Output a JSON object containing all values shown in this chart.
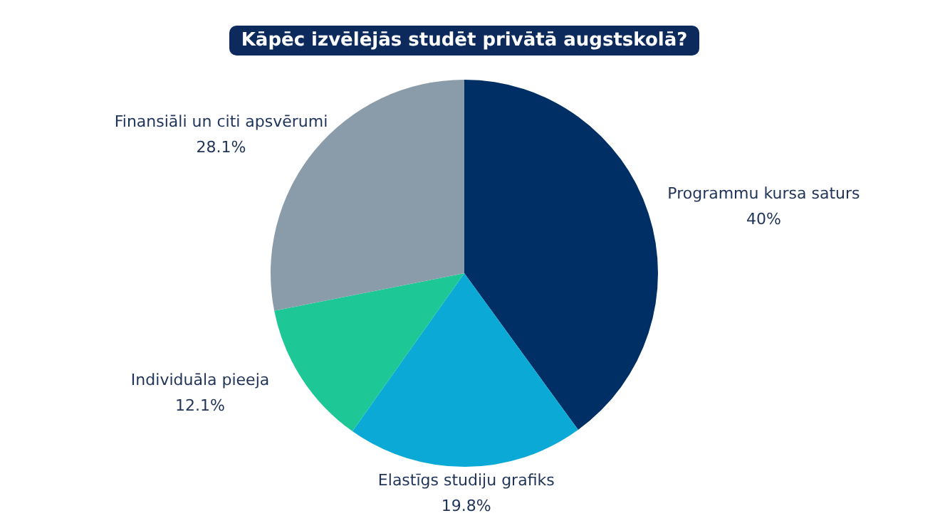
{
  "chart_data": {
    "type": "pie",
    "title": "Kāpēc izvēlējās studēt privātā augstskolā?",
    "categories": [
      "Programmu kursa saturs",
      "Elastīgs studiju grafiks",
      "Individuāla pieeja",
      "Finansiāli un citi apsvērumi"
    ],
    "values": [
      40,
      19.8,
      12.1,
      28.1
    ],
    "colors": [
      "#002f66",
      "#0aa9d6",
      "#1dc796",
      "#8a9ca9"
    ],
    "value_labels": [
      "40%",
      "19.8%",
      "12.1%",
      "28.1%"
    ],
    "legend": false
  }
}
